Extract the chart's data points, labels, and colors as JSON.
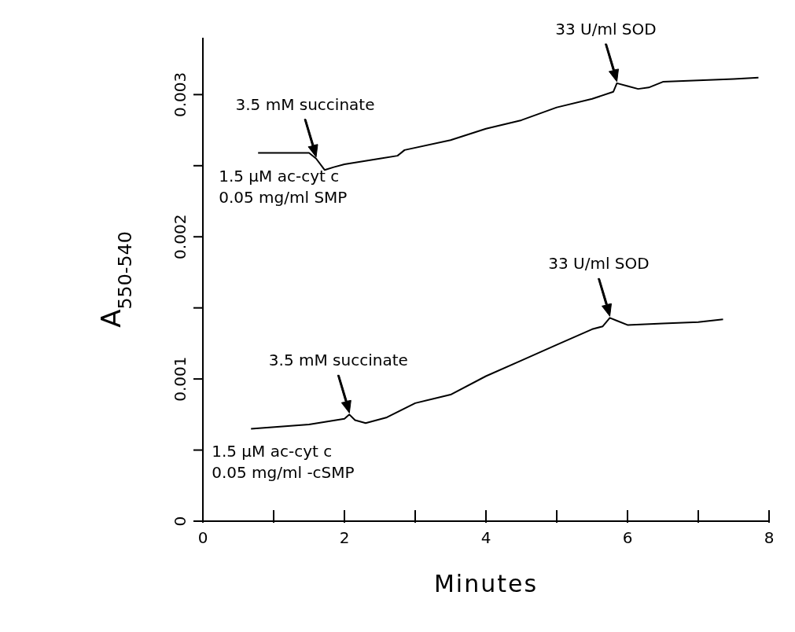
{
  "chart_data": {
    "type": "line",
    "xlabel": "Minutes",
    "ylabel": "A$_{550-540}$",
    "xlim": [
      0,
      8
    ],
    "xticks": [
      0,
      {
        "value": 1,
        "label": null
      },
      2,
      {
        "value": 3,
        "label": null
      },
      4,
      {
        "value": 5,
        "label": null
      },
      6,
      {
        "value": 7,
        "label": null
      },
      8
    ],
    "ylim": [
      0,
      0.0034
    ],
    "yticks": [
      0,
      {
        "value": 0.0005,
        "label": null
      },
      0.001,
      {
        "value": 0.0015,
        "label": null
      },
      0.002,
      {
        "value": 0.0025,
        "label": null
      },
      0.003
    ],
    "grid": false,
    "marker": "none",
    "line_style": "solid",
    "series": [
      {
        "color": "#000000",
        "x": [
          0.78,
          1.5,
          1.6,
          1.72,
          1.85,
          2.0,
          2.5,
          2.75,
          2.85,
          3.5,
          4,
          4.5,
          5,
          5.5,
          5.8,
          5.85,
          6.0,
          6.15,
          6.3,
          6.5,
          7,
          7.5,
          7.85
        ],
        "values": [
          0.00259,
          0.00259,
          0.00255,
          0.00247,
          0.00249,
          0.00251,
          0.00255,
          0.00257,
          0.00261,
          0.00268,
          0.00276,
          0.00282,
          0.00291,
          0.00297,
          0.00302,
          0.00308,
          0.00306,
          0.00304,
          0.00305,
          0.00309,
          0.0031,
          0.00311,
          0.00312
        ]
      },
      {
        "color": "#000000",
        "x": [
          0.68,
          1.5,
          2.0,
          2.07,
          2.15,
          2.3,
          2.6,
          3.0,
          3.5,
          4,
          4.5,
          5,
          5.5,
          5.65,
          5.75,
          5.85,
          6.0,
          6.5,
          7,
          7.35
        ],
        "values": [
          0.00065,
          0.00068,
          0.00072,
          0.00075,
          0.00071,
          0.00069,
          0.00073,
          0.00083,
          0.00089,
          0.00102,
          0.00113,
          0.00124,
          0.00135,
          0.00137,
          0.00143,
          0.00141,
          0.00138,
          0.00139,
          0.0014,
          0.00142
        ]
      }
    ],
    "annotations": [
      {
        "text": "3.5 mM succinate",
        "x": 1.6,
        "y": 0.00255
      },
      {
        "text": "33 U/ml SOD",
        "x": 5.85,
        "y": 0.00308
      },
      {
        "text": "3.5 mM succinate",
        "x": 2.07,
        "y": 0.00075
      },
      {
        "text": "33 U/ml SOD",
        "x": 5.75,
        "y": 0.00143
      },
      {
        "text": "1.5 µM ac-cyt c\n0.05 mg/ml SMP",
        "x": 0.78,
        "y": 0.00259
      },
      {
        "text": "1.5 µM ac-cyt c\n0.05 mg/ml -cSMP",
        "x": 0.68,
        "y": 0.00065
      }
    ]
  }
}
